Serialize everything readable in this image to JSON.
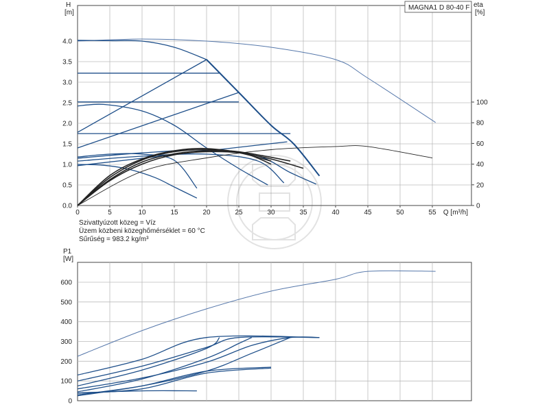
{
  "chart_data": [
    {
      "type": "line",
      "model_label": "MAGNA1 D 80-40 F",
      "ylabel": "H",
      "yunit": "[m]",
      "y2label": "eta",
      "y2unit": "[%]",
      "xlabel": "Q [m³/h]",
      "xlim": [
        0,
        57
      ],
      "ylim": [
        0,
        4.0
      ],
      "y2lim": [
        0,
        100
      ],
      "xticks": [
        "0",
        "5",
        "10",
        "15",
        "20",
        "25",
        "30",
        "35",
        "40",
        "45",
        "50",
        "55"
      ],
      "yticks": [
        "0.0",
        "0.5",
        "1.0",
        "1.5",
        "2.0",
        "2.5",
        "3.0",
        "3.5",
        "4.0"
      ],
      "y2ticks": [
        "0",
        "20",
        "40",
        "60",
        "80",
        "100"
      ],
      "grid": true,
      "notes": [
        "Szivattyúzott közeg = Víz",
        "Üzem közbeni közeghőmérséklet = 60 °C",
        "Sűrűség = 983.2 kg/m³"
      ],
      "colors": {
        "series": "#1d4e89",
        "efficiency": "#222222",
        "grid": "#bbbbbb"
      },
      "series": [
        {
          "values": [
            [
              0,
              4.02
            ],
            [
              5,
              4.01
            ],
            [
              10,
              4.0
            ],
            [
              15,
              3.85
            ],
            [
              20,
              3.55
            ]
          ]
        },
        {
          "values": [
            [
              20,
              3.55
            ],
            [
              25,
              2.75
            ],
            [
              30,
              1.95
            ],
            [
              33.5,
              1.5
            ],
            [
              37.5,
              0.72
            ]
          ]
        },
        {
          "values": [
            [
              0,
              1.78
            ],
            [
              20,
              3.55
            ]
          ]
        },
        {
          "values": [
            [
              0,
              1.4
            ],
            [
              25,
              2.75
            ]
          ]
        },
        {
          "values": [
            [
              0,
              0.97
            ],
            [
              32.5,
              1.55
            ]
          ]
        },
        {
          "values": [
            [
              0,
              3.22
            ],
            [
              22,
              3.22
            ]
          ]
        },
        {
          "values": [
            [
              0,
              2.52
            ],
            [
              25,
              2.52
            ]
          ]
        },
        {
          "values": [
            [
              0,
              1.75
            ],
            [
              33,
              1.75
            ]
          ]
        },
        {
          "values": [
            [
              0,
              2.42
            ],
            [
              4,
              2.46
            ],
            [
              10,
              2.3
            ],
            [
              15,
              1.95
            ],
            [
              20,
              1.4
            ],
            [
              25,
              0.9
            ],
            [
              29.5,
              0.5
            ]
          ]
        },
        {
          "values": [
            [
              0,
              1.0
            ],
            [
              4,
              0.98
            ],
            [
              8,
              0.88
            ],
            [
              12,
              0.68
            ],
            [
              15,
              0.45
            ],
            [
              18.5,
              0.18
            ]
          ]
        },
        {
          "values": [
            [
              0,
              1.18
            ],
            [
              5,
              1.25
            ],
            [
              10,
              1.25
            ],
            [
              15,
              1.1
            ],
            [
              18.5,
              0.42
            ]
          ]
        },
        {
          "values": [
            [
              0,
              1.08
            ],
            [
              10,
              1.2
            ],
            [
              20,
              1.25
            ],
            [
              28,
              1.08
            ],
            [
              32,
              0.55
            ]
          ]
        },
        {
          "values": [
            [
              0,
              1.15
            ],
            [
              10,
              1.28
            ],
            [
              20,
              1.35
            ],
            [
              28,
              1.2
            ],
            [
              33,
              0.8
            ],
            [
              37,
              0.52
            ]
          ]
        }
      ],
      "efficiency_series": [
        {
          "values": [
            [
              0,
              0
            ],
            [
              5,
              24
            ],
            [
              10,
              40
            ],
            [
              15,
              49
            ],
            [
              20,
              52
            ],
            [
              25,
              51
            ],
            [
              30,
              45
            ],
            [
              35,
              36
            ]
          ]
        },
        {
          "values": [
            [
              0,
              0
            ],
            [
              5,
              27
            ],
            [
              10,
              44
            ],
            [
              15,
              52
            ],
            [
              20,
              54
            ],
            [
              25,
              51
            ],
            [
              30,
              43
            ]
          ]
        },
        {
          "values": [
            [
              0,
              0
            ],
            [
              5,
              25
            ],
            [
              10,
              42
            ],
            [
              15,
              50
            ],
            [
              20,
              53
            ],
            [
              25,
              52
            ],
            [
              33,
              43
            ]
          ]
        },
        {
          "values": [
            [
              0,
              0
            ],
            [
              5,
              29
            ],
            [
              10,
              45
            ],
            [
              15,
              53
            ],
            [
              20,
              55
            ],
            [
              26,
              50
            ],
            [
              30,
              40
            ]
          ]
        },
        {
          "values": [
            [
              0,
              0
            ],
            [
              10,
              33
            ],
            [
              20,
              46
            ],
            [
              30,
              54
            ],
            [
              40,
              57
            ],
            [
              45,
              57
            ],
            [
              55,
              46
            ]
          ]
        }
      ],
      "npsh_curve": {
        "values": [
          [
            0,
            4.0
          ],
          [
            10,
            4.05
          ],
          [
            20,
            4.0
          ],
          [
            30,
            3.85
          ],
          [
            40,
            3.55
          ],
          [
            45,
            3.1
          ],
          [
            55.5,
            2.02
          ]
        ]
      }
    },
    {
      "type": "line",
      "ylabel": "P1",
      "yunit": "[W]",
      "xlim": [
        0,
        57
      ],
      "ylim": [
        0,
        700
      ],
      "yticks": [
        "0",
        "100",
        "200",
        "300",
        "400",
        "500",
        "600"
      ],
      "grid": true,
      "series": [
        {
          "values": [
            [
              0,
              225
            ],
            [
              10,
              355
            ],
            [
              20,
              465
            ],
            [
              30,
              555
            ],
            [
              40,
              615
            ],
            [
              45,
              655
            ],
            [
              55.5,
              655
            ]
          ]
        },
        {
          "values": [
            [
              0,
              130
            ],
            [
              10,
              210
            ],
            [
              20,
              320
            ],
            [
              37.5,
              320
            ]
          ]
        },
        {
          "values": [
            [
              0,
              100
            ],
            [
              10,
              175
            ],
            [
              20,
              270
            ],
            [
              25,
              320
            ],
            [
              37.5,
              320
            ]
          ]
        },
        {
          "values": [
            [
              0,
              60
            ],
            [
              10,
              115
            ],
            [
              20,
              195
            ],
            [
              27,
              280
            ],
            [
              33,
              320
            ],
            [
              37.5,
              320
            ]
          ]
        },
        {
          "values": [
            [
              0,
              30
            ],
            [
              10,
              75
            ],
            [
              20,
              150
            ],
            [
              27,
              240
            ],
            [
              33,
              320
            ]
          ]
        },
        {
          "values": [
            [
              0,
              45
            ],
            [
              10,
              110
            ],
            [
              20,
              215
            ],
            [
              25,
              290
            ],
            [
              27,
              320
            ]
          ]
        },
        {
          "values": [
            [
              0,
              75
            ],
            [
              10,
              155
            ],
            [
              20,
              265
            ],
            [
              22,
              320
            ]
          ]
        },
        {
          "values": [
            [
              0,
              25
            ],
            [
              10,
              75
            ],
            [
              20,
              150
            ],
            [
              30,
              170
            ]
          ]
        },
        {
          "values": [
            [
              0,
              38
            ],
            [
              10,
              60
            ],
            [
              20,
              140
            ],
            [
              30,
              165
            ]
          ]
        },
        {
          "values": [
            [
              0,
              40
            ],
            [
              10,
              50
            ],
            [
              18.5,
              50
            ]
          ]
        }
      ]
    }
  ]
}
